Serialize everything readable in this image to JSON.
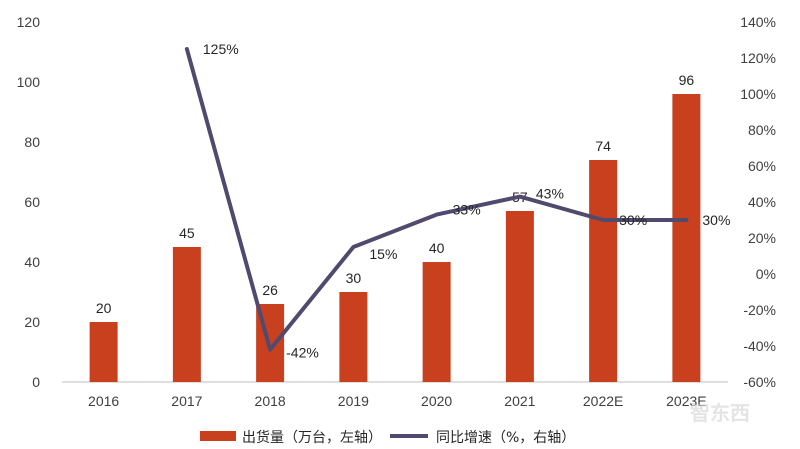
{
  "chart_data": {
    "type": "bar",
    "categories": [
      "2016",
      "2017",
      "2018",
      "2019",
      "2020",
      "2021",
      "2022E",
      "2023E"
    ],
    "series": [
      {
        "name": "出货量（万台，左轴）",
        "type": "bar",
        "axis": "left",
        "values": [
          20,
          45,
          26,
          30,
          40,
          57,
          74,
          96
        ],
        "labels": [
          "20",
          "45",
          "26",
          "30",
          "40",
          "57",
          "74",
          "96"
        ],
        "color": "#C8401E"
      },
      {
        "name": "同比增速（%，右轴）",
        "type": "line",
        "axis": "right",
        "values": [
          null,
          125,
          -42,
          15,
          33,
          43,
          30,
          30
        ],
        "labels": [
          "",
          "125%",
          "-42%",
          "15%",
          "33%",
          "43%",
          "30%",
          "30%"
        ],
        "color": "#514A6E"
      }
    ],
    "y_left": {
      "min": 0,
      "max": 120,
      "step": 20,
      "ticks": [
        "0",
        "20",
        "40",
        "60",
        "80",
        "100",
        "120"
      ]
    },
    "y_right": {
      "min": -60,
      "max": 140,
      "step": 20,
      "ticks": [
        "-60%",
        "-40%",
        "-20%",
        "0%",
        "20%",
        "40%",
        "60%",
        "80%",
        "100%",
        "120%",
        "140%"
      ]
    },
    "grid": false,
    "legend_position": "bottom",
    "watermark": "智东西"
  }
}
